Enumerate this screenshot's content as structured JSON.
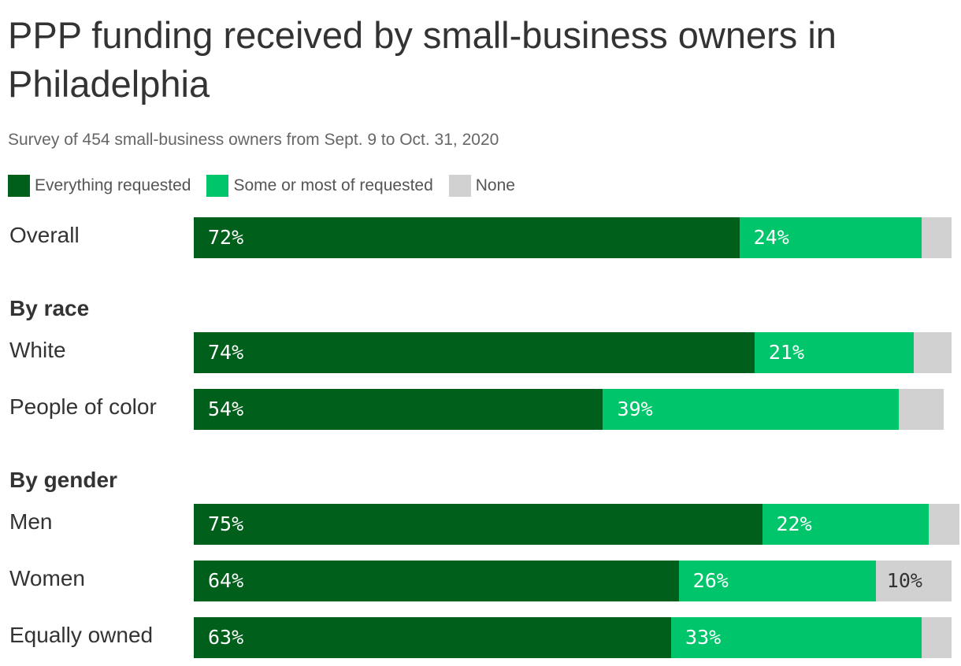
{
  "chart_data": {
    "type": "bar",
    "orientation": "horizontal",
    "stacked": true,
    "title": "PPP funding received by small‑business owners in Philadelphia",
    "subtitle": "Survey of 454 small‑business owners from Sept. 9 to Oct. 31, 2020",
    "legend_position": "top-left",
    "legend": [
      {
        "key": "everything",
        "label": "Everything requested",
        "color": "#005f1a"
      },
      {
        "key": "some",
        "label": "Some or most of requested",
        "color": "#00c56a"
      },
      {
        "key": "none",
        "label": "None",
        "color": "#d0d1d0"
      }
    ],
    "groups": [
      {
        "heading": "",
        "rows": [
          {
            "label": "Overall",
            "values": [
              72,
              24,
              4
            ],
            "value_labels": [
              "72%",
              "24%",
              ""
            ]
          }
        ]
      },
      {
        "heading": "By race",
        "rows": [
          {
            "label": "White",
            "values": [
              74,
              21,
              5
            ],
            "value_labels": [
              "74%",
              "21%",
              ""
            ]
          },
          {
            "label": "People of color",
            "values": [
              54,
              39,
              6
            ],
            "value_labels": [
              "54%",
              "39%",
              ""
            ]
          }
        ]
      },
      {
        "heading": "By gender",
        "rows": [
          {
            "label": "Men",
            "values": [
              75,
              22,
              4
            ],
            "value_labels": [
              "75%",
              "22%",
              ""
            ]
          },
          {
            "label": "Women",
            "values": [
              64,
              26,
              10
            ],
            "value_labels": [
              "64%",
              "26%",
              "10%"
            ]
          },
          {
            "label": "Equally owned",
            "values": [
              63,
              33,
              4
            ],
            "value_labels": [
              "63%",
              "33%",
              ""
            ]
          }
        ]
      }
    ],
    "xlim": [
      0,
      100
    ],
    "grid": false
  }
}
